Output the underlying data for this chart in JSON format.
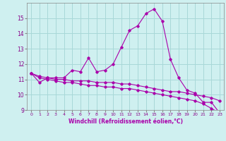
{
  "xlabel": "Windchill (Refroidissement éolien,°C)",
  "background_color": "#cff0f0",
  "grid_color": "#a8d8d8",
  "line_color": "#aa00aa",
  "x_hours": [
    0,
    1,
    2,
    3,
    4,
    5,
    6,
    7,
    8,
    9,
    10,
    11,
    12,
    13,
    14,
    15,
    16,
    17,
    18,
    19,
    20,
    21,
    22,
    23
  ],
  "temp_curve": [
    11.4,
    10.8,
    11.1,
    11.1,
    11.1,
    11.6,
    11.5,
    12.4,
    11.5,
    11.6,
    12.0,
    13.1,
    14.2,
    14.5,
    15.3,
    15.6,
    14.8,
    12.3,
    11.1,
    10.3,
    10.1,
    9.5,
    9.5,
    8.8
  ],
  "windchill_line1": [
    11.4,
    11.2,
    11.1,
    11.0,
    11.0,
    10.9,
    10.9,
    10.9,
    10.8,
    10.8,
    10.8,
    10.7,
    10.7,
    10.6,
    10.5,
    10.4,
    10.3,
    10.2,
    10.2,
    10.1,
    10.0,
    9.9,
    9.8,
    9.6
  ],
  "windchill_line2": [
    11.4,
    11.1,
    11.0,
    10.9,
    10.8,
    10.8,
    10.7,
    10.6,
    10.6,
    10.5,
    10.5,
    10.4,
    10.4,
    10.3,
    10.2,
    10.1,
    10.0,
    9.9,
    9.8,
    9.7,
    9.6,
    9.4,
    9.1,
    8.8
  ],
  "ylim": [
    9,
    16
  ],
  "yticks": [
    9,
    10,
    11,
    12,
    13,
    14,
    15
  ],
  "xlim": [
    0,
    23
  ]
}
